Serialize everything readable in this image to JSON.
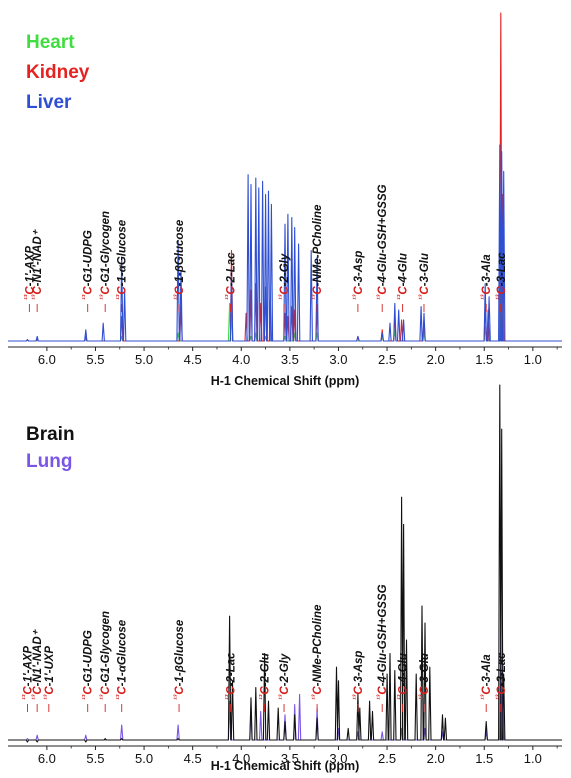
{
  "chart_data": [
    {
      "type": "line",
      "legend": [
        {
          "name": "Heart",
          "color": "#3fdd3f"
        },
        {
          "name": "Kidney",
          "color": "#e52222"
        },
        {
          "name": "Liver",
          "color": "#2f4fd2"
        }
      ],
      "xlabel": "H-1 Chemical Shift (ppm)",
      "xlim": [
        6.4,
        0.7
      ],
      "x_ticks": [
        "6.0",
        "5.5",
        "5.0",
        "4.5",
        "4.0",
        "3.5",
        "3.0",
        "2.5",
        "2.0",
        "1.5",
        "1.0"
      ],
      "ylim": [
        0,
        100
      ],
      "series": [
        {
          "name": "Liver",
          "color": "#2f4fd2",
          "x": [
            6.2,
            6.1,
            5.6,
            5.42,
            5.23,
            5.2,
            4.65,
            4.62,
            4.1,
            3.93,
            3.9,
            3.85,
            3.82,
            3.78,
            3.75,
            3.72,
            3.69,
            3.55,
            3.52,
            3.48,
            3.45,
            3.41,
            3.28,
            3.22,
            2.8,
            2.55,
            2.47,
            2.42,
            2.38,
            2.33,
            2.15,
            2.12,
            1.49,
            1.45,
            1.34,
            1.32,
            1.3
          ],
          "y": [
            1,
            2,
            4,
            6,
            26,
            16,
            31,
            22,
            23,
            51,
            48,
            50,
            47,
            49,
            45,
            46,
            42,
            36,
            39,
            38,
            35,
            30,
            28,
            26,
            2,
            3,
            6,
            12,
            10,
            7,
            11,
            9,
            18,
            14,
            60,
            58,
            52
          ]
        },
        {
          "name": "Kidney",
          "color": "#e52222",
          "x": [
            6.2,
            6.1,
            5.6,
            5.23,
            4.62,
            4.1,
            3.95,
            3.9,
            3.85,
            3.8,
            3.75,
            3.7,
            3.55,
            3.52,
            3.48,
            3.45,
            3.22,
            2.8,
            2.55,
            2.42,
            2.35,
            2.12,
            1.49,
            1.46,
            1.33,
            1.31
          ],
          "y": [
            1,
            1,
            2,
            8,
            11,
            28,
            9,
            16,
            18,
            12,
            17,
            13,
            9,
            8,
            11,
            10,
            11,
            2,
            4,
            9,
            7,
            7,
            12,
            10,
            100,
            45
          ]
        },
        {
          "name": "Heart",
          "color": "#3fdd3f",
          "x": [
            6.2,
            6.1,
            5.6,
            5.23,
            4.65,
            4.12,
            4.1,
            3.9,
            3.85,
            3.75,
            3.55,
            3.45,
            3.22,
            2.55,
            2.42,
            2.12,
            1.49,
            1.33
          ],
          "y": [
            1,
            1,
            1,
            2,
            3,
            12,
            9,
            2,
            3,
            2,
            2,
            3,
            3,
            2,
            4,
            3,
            5,
            17
          ]
        }
      ],
      "annotations": [
        {
          "x": 6.18,
          "label": "¹³C-1′-AXP"
        },
        {
          "x": 6.1,
          "label": "¹³C-N1′-NAD⁺"
        },
        {
          "x": 5.58,
          "label": "¹³C-G1-UDPG"
        },
        {
          "x": 5.4,
          "label": "¹³C-G1-Glycogen"
        },
        {
          "x": 5.23,
          "label": "¹³C-1-αGlucose"
        },
        {
          "x": 4.64,
          "label": "¹³C-1-βGlucose"
        },
        {
          "x": 4.11,
          "label": "¹³C-2-Lac"
        },
        {
          "x": 3.56,
          "label": "¹³C-2-Gly"
        },
        {
          "x": 3.22,
          "label": "¹³C-NMe-PCholine"
        },
        {
          "x": 2.8,
          "label": "¹³C-3-Asp"
        },
        {
          "x": 2.55,
          "label": "¹³C-4-Glu-GSH+GSSG"
        },
        {
          "x": 2.34,
          "label": "¹³C-4-Glu"
        },
        {
          "x": 2.12,
          "label": "¹³C-3-Glu"
        },
        {
          "x": 1.48,
          "label": "¹³C-3-Ala"
        },
        {
          "x": 1.33,
          "label": "¹³C-3-Lac"
        }
      ]
    },
    {
      "type": "line",
      "legend": [
        {
          "name": "Brain",
          "color": "#111111"
        },
        {
          "name": "Lung",
          "color": "#7a55e6"
        }
      ],
      "xlabel": "H-1 Chemical Shift (ppm)",
      "xlim": [
        6.4,
        0.7
      ],
      "x_ticks": [
        "6.0",
        "5.5",
        "5.0",
        "4.5",
        "4.0",
        "3.5",
        "3.0",
        "2.5",
        "2.0",
        "1.5",
        "1.0"
      ],
      "ylim": [
        0,
        100
      ],
      "series": [
        {
          "name": "Brain",
          "color": "#111111",
          "x": [
            6.2,
            6.1,
            5.6,
            5.4,
            5.23,
            4.65,
            4.12,
            4.09,
            3.9,
            3.85,
            3.76,
            3.72,
            3.62,
            3.55,
            3.45,
            3.22,
            3.02,
            3.0,
            2.9,
            2.8,
            2.78,
            2.68,
            2.65,
            2.5,
            2.47,
            2.42,
            2.35,
            2.33,
            2.3,
            2.2,
            2.14,
            2.11,
            2.06,
            1.93,
            1.9,
            1.48,
            1.34,
            1.32,
            1.3
          ],
          "y": [
            0,
            0,
            0,
            1,
            1,
            1,
            37,
            18,
            13,
            16,
            26,
            12,
            10,
            6,
            8,
            7,
            22,
            18,
            4,
            14,
            10,
            12,
            9,
            20,
            26,
            21,
            72,
            64,
            30,
            20,
            40,
            35,
            22,
            8,
            7,
            6,
            105,
            92,
            20
          ]
        },
        {
          "name": "Lung",
          "color": "#7a55e6",
          "x": [
            6.2,
            6.1,
            5.6,
            5.23,
            4.65,
            4.12,
            3.9,
            3.8,
            3.55,
            3.45,
            3.4,
            3.22,
            3.0,
            2.8,
            2.55,
            2.35,
            2.11,
            1.93,
            1.48,
            1.33,
            1.31
          ],
          "y": [
            1,
            2,
            2,
            5,
            5,
            12,
            10,
            9,
            8,
            11,
            14,
            10,
            4,
            3,
            3,
            4,
            4,
            3,
            3,
            33,
            15
          ]
        }
      ],
      "annotations": [
        {
          "x": 6.2,
          "label": "¹³C-1′-AXP"
        },
        {
          "x": 6.1,
          "label": "¹³C-N1′-NAD⁺"
        },
        {
          "x": 5.98,
          "label": "¹³C-1′-UXP"
        },
        {
          "x": 5.58,
          "label": "¹³C-G1-UDPG"
        },
        {
          "x": 5.4,
          "label": "¹³C-G1-Glycogen"
        },
        {
          "x": 5.23,
          "label": "¹³C-1-αGlucose"
        },
        {
          "x": 4.64,
          "label": "¹³C-1-βGlucose"
        },
        {
          "x": 4.11,
          "label": "¹³C-2-Lac"
        },
        {
          "x": 3.76,
          "label": "¹³C-2-Glu"
        },
        {
          "x": 3.56,
          "label": "¹³C-2-Gly"
        },
        {
          "x": 3.22,
          "label": "¹³C-NMe-PCholine"
        },
        {
          "x": 2.8,
          "label": "¹³C-3-Asp"
        },
        {
          "x": 2.55,
          "label": "¹³C-4-Glu-GSH+GSSG"
        },
        {
          "x": 2.34,
          "label": "¹³C-4-Glu"
        },
        {
          "x": 2.12,
          "label": "¹³C-3-Glu"
        },
        {
          "x": 1.48,
          "label": "¹³C-3-Ala"
        },
        {
          "x": 1.33,
          "label": "¹³C-3-Lac"
        }
      ]
    }
  ]
}
